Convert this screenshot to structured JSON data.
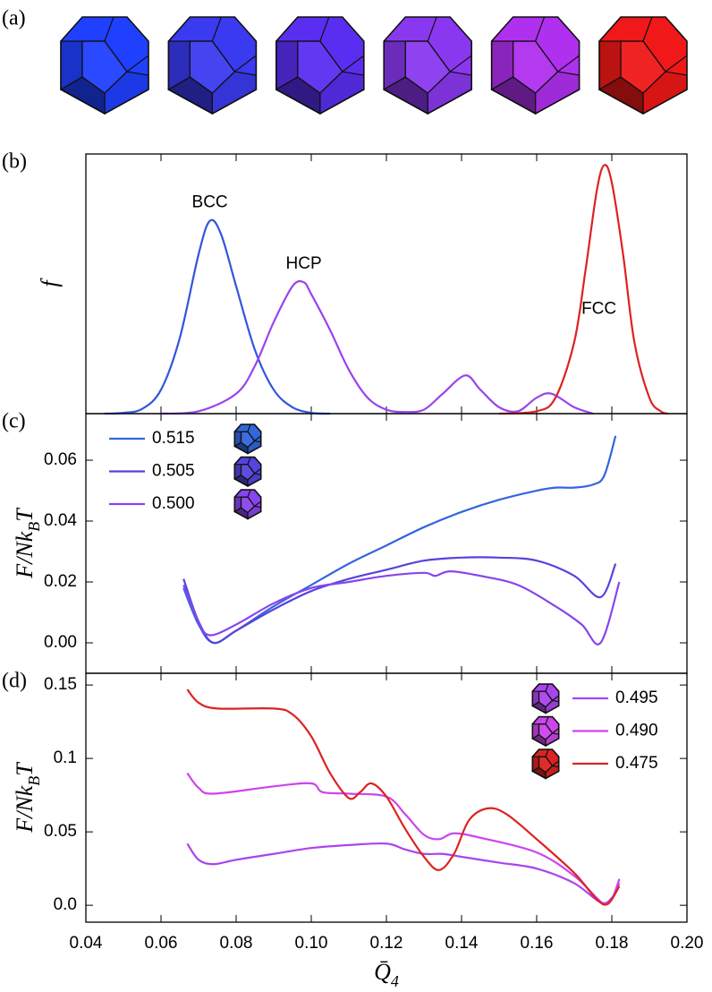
{
  "panel_a": {
    "label": "(a)",
    "icon_colors": [
      "#2040ff",
      "#3a3af0",
      "#5a2ef0",
      "#8a38f0",
      "#b030f0",
      "#f01818"
    ]
  },
  "chart_data": [
    {
      "type": "line",
      "panel_label": "(b)",
      "ylabel": {
        "main": "f"
      },
      "legend": "none",
      "xlim": [
        0.04,
        0.2
      ],
      "ylim": [
        0,
        3.26
      ],
      "series": [
        {
          "name": "BCC",
          "color": "#3355dd",
          "x": [
            0.045,
            0.05,
            0.055,
            0.06,
            0.065,
            0.07,
            0.073,
            0.076,
            0.08,
            0.085,
            0.09,
            0.095,
            0.1,
            0.105
          ],
          "values": [
            0,
            0.01,
            0.06,
            0.3,
            0.95,
            2.0,
            2.42,
            2.25,
            1.6,
            0.8,
            0.3,
            0.08,
            0.01,
            0
          ]
        },
        {
          "name": "HCP",
          "color": "#9944ee",
          "x": [
            0.06,
            0.07,
            0.08,
            0.085,
            0.09,
            0.095,
            0.098,
            0.1,
            0.105,
            0.11,
            0.115,
            0.12,
            0.125,
            0.13,
            0.135,
            0.141,
            0.145,
            0.15,
            0.155,
            0.16,
            0.164,
            0.17,
            0.175
          ],
          "values": [
            0,
            0.03,
            0.25,
            0.6,
            1.15,
            1.6,
            1.65,
            1.5,
            1.05,
            0.55,
            0.2,
            0.05,
            0.02,
            0.05,
            0.25,
            0.48,
            0.3,
            0.08,
            0.03,
            0.2,
            0.25,
            0.08,
            0
          ]
        },
        {
          "name": "FCC",
          "color": "#dd2222",
          "x": [
            0.15,
            0.16,
            0.165,
            0.17,
            0.173,
            0.176,
            0.178,
            0.18,
            0.183,
            0.186,
            0.19,
            0.193,
            0.195
          ],
          "values": [
            0,
            0.03,
            0.2,
            0.9,
            1.8,
            2.8,
            3.12,
            2.9,
            2.0,
            0.9,
            0.2,
            0.03,
            0
          ]
        }
      ]
    },
    {
      "type": "line",
      "panel_label": "(c)",
      "ylabel": {
        "main": "F/Nk",
        "sub": "B",
        "end": "T"
      },
      "legend": "upper left",
      "xlim": [
        0.04,
        0.2
      ],
      "ylim": [
        -0.01,
        0.0753
      ],
      "yticks": [
        {
          "value": 0,
          "label": "0.00"
        },
        0.02,
        0.04,
        0.06
      ],
      "series": [
        {
          "name": "0.515",
          "color": "#3366dd",
          "x": [
            0.066,
            0.07,
            0.074,
            0.08,
            0.09,
            0.1,
            0.11,
            0.12,
            0.13,
            0.14,
            0.15,
            0.16,
            0.165,
            0.17,
            0.175,
            0.178,
            0.181
          ],
          "values": [
            0.018,
            0.006,
            0.0,
            0.004,
            0.012,
            0.019,
            0.026,
            0.032,
            0.038,
            0.043,
            0.047,
            0.05,
            0.051,
            0.051,
            0.052,
            0.055,
            0.068
          ]
        },
        {
          "name": "0.505",
          "color": "#5544dd",
          "x": [
            0.066,
            0.07,
            0.074,
            0.08,
            0.09,
            0.1,
            0.11,
            0.12,
            0.13,
            0.14,
            0.15,
            0.16,
            0.17,
            0.177,
            0.181
          ],
          "values": [
            0.021,
            0.007,
            0.0,
            0.004,
            0.011,
            0.017,
            0.021,
            0.024,
            0.027,
            0.028,
            0.028,
            0.027,
            0.022,
            0.015,
            0.026
          ]
        },
        {
          "name": "0.500",
          "color": "#8844ee",
          "x": [
            0.066,
            0.07,
            0.073,
            0.08,
            0.09,
            0.1,
            0.11,
            0.12,
            0.13,
            0.133,
            0.137,
            0.145,
            0.155,
            0.165,
            0.172,
            0.177,
            0.182
          ],
          "values": [
            0.019,
            0.007,
            0.0025,
            0.006,
            0.013,
            0.018,
            0.02,
            0.022,
            0.023,
            0.022,
            0.0235,
            0.022,
            0.019,
            0.012,
            0.006,
            0.0,
            0.02
          ]
        }
      ]
    },
    {
      "type": "line",
      "panel_label": "(d)",
      "ylabel": {
        "main": "F/Nk",
        "sub": "B",
        "end": "T"
      },
      "xlabel": {
        "main": "Q̄",
        "sub": "4"
      },
      "legend": "upper right",
      "xlim": [
        0.04,
        0.2
      ],
      "ylim": [
        -0.0115,
        0.158
      ],
      "xticks": [
        0.04,
        0.06,
        0.08,
        {
          "value": 0.1,
          "label": "0.10"
        },
        0.12,
        0.14,
        0.16,
        0.18,
        {
          "value": 0.2,
          "label": "0.20"
        }
      ],
      "yticks": [
        {
          "value": 0,
          "label": "0.0"
        },
        0.05,
        0.1,
        0.15
      ],
      "series": [
        {
          "name": "0.495",
          "color": "#aa44ee",
          "x": [
            0.067,
            0.07,
            0.074,
            0.08,
            0.09,
            0.1,
            0.11,
            0.12,
            0.125,
            0.13,
            0.135,
            0.14,
            0.15,
            0.16,
            0.17,
            0.177,
            0.18,
            0.182
          ],
          "values": [
            0.042,
            0.031,
            0.028,
            0.031,
            0.035,
            0.039,
            0.041,
            0.042,
            0.038,
            0.035,
            0.035,
            0.033,
            0.029,
            0.025,
            0.015,
            0.002,
            0.005,
            0.015
          ]
        },
        {
          "name": "0.490",
          "color": "#cc44ee",
          "x": [
            0.067,
            0.07,
            0.074,
            0.09,
            0.1,
            0.103,
            0.11,
            0.12,
            0.125,
            0.13,
            0.134,
            0.138,
            0.145,
            0.16,
            0.17,
            0.176,
            0.178,
            0.18,
            0.182
          ],
          "values": [
            0.09,
            0.08,
            0.076,
            0.081,
            0.083,
            0.077,
            0.076,
            0.074,
            0.062,
            0.048,
            0.045,
            0.049,
            0.046,
            0.036,
            0.02,
            0.005,
            0.001,
            0.004,
            0.018
          ]
        },
        {
          "name": "0.475",
          "color": "#dd2222",
          "x": [
            0.067,
            0.07,
            0.075,
            0.09,
            0.095,
            0.1,
            0.105,
            0.11,
            0.113,
            0.116,
            0.12,
            0.125,
            0.13,
            0.134,
            0.138,
            0.142,
            0.147,
            0.152,
            0.16,
            0.17,
            0.176,
            0.179,
            0.182
          ],
          "values": [
            0.147,
            0.138,
            0.134,
            0.134,
            0.13,
            0.115,
            0.09,
            0.073,
            0.077,
            0.083,
            0.074,
            0.052,
            0.033,
            0.024,
            0.035,
            0.058,
            0.066,
            0.062,
            0.045,
            0.022,
            0.004,
            0.001,
            0.013
          ]
        }
      ]
    }
  ]
}
